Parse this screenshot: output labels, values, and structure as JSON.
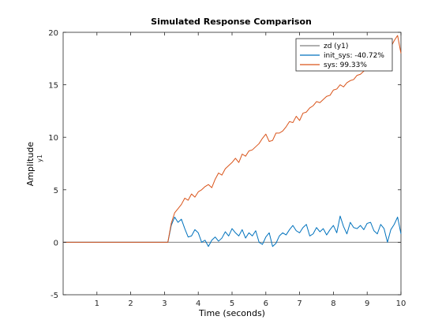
{
  "chart_data": {
    "type": "line",
    "title": "Simulated Response Comparison",
    "xlabel": "Time (seconds)",
    "ylabel": "Amplitude",
    "ylabel_sub": "y1",
    "xlim": [
      0,
      10
    ],
    "ylim": [
      -5,
      20
    ],
    "xticks": [
      1,
      2,
      3,
      4,
      5,
      6,
      7,
      8,
      9,
      10
    ],
    "yticks": [
      -5,
      0,
      5,
      10,
      15,
      20
    ],
    "grid": false,
    "legend_position": "top-right",
    "series": [
      {
        "name": "zd (y1)",
        "color": "#7f7f7f",
        "x": [
          0,
          10
        ],
        "y": [
          0,
          0
        ]
      },
      {
        "name": "init_sys: -40.72%",
        "color": "#0072bd",
        "x": [
          0,
          3.1,
          3.2,
          3.3,
          3.4,
          3.5,
          3.6,
          3.7,
          3.8,
          3.9,
          4.0,
          4.1,
          4.2,
          4.3,
          4.4,
          4.5,
          4.6,
          4.7,
          4.8,
          4.9,
          5.0,
          5.1,
          5.2,
          5.3,
          5.4,
          5.5,
          5.6,
          5.7,
          5.8,
          5.9,
          6.0,
          6.1,
          6.2,
          6.3,
          6.4,
          6.5,
          6.6,
          6.7,
          6.8,
          6.9,
          7.0,
          7.1,
          7.2,
          7.3,
          7.4,
          7.5,
          7.6,
          7.7,
          7.8,
          7.9,
          8.0,
          8.1,
          8.2,
          8.3,
          8.4,
          8.5,
          8.6,
          8.7,
          8.8,
          8.9,
          9.0,
          9.1,
          9.2,
          9.3,
          9.4,
          9.5,
          9.6,
          9.7,
          9.8,
          9.9,
          10.0
        ],
        "y": [
          0,
          0,
          1.6,
          2.4,
          1.9,
          2.2,
          1.3,
          0.5,
          0.6,
          1.2,
          0.9,
          0.0,
          0.2,
          -0.4,
          0.2,
          0.5,
          0.1,
          0.4,
          1.0,
          0.6,
          1.3,
          0.9,
          0.6,
          1.2,
          0.4,
          0.9,
          0.6,
          1.1,
          0.0,
          -0.2,
          0.5,
          0.9,
          -0.4,
          -0.1,
          0.6,
          0.9,
          0.7,
          1.2,
          1.6,
          1.1,
          0.9,
          1.4,
          1.7,
          0.6,
          0.8,
          1.4,
          1.0,
          1.3,
          0.7,
          1.2,
          1.6,
          0.9,
          2.5,
          1.5,
          0.8,
          1.9,
          1.4,
          1.3,
          1.6,
          1.2,
          1.8,
          1.9,
          1.1,
          0.8,
          1.7,
          1.3,
          0.0,
          1.2,
          1.7,
          2.4,
          0.8
        ]
      },
      {
        "name": "sys: 99.33%",
        "color": "#d95319",
        "x": [
          0,
          3.1,
          3.2,
          3.3,
          3.4,
          3.5,
          3.6,
          3.7,
          3.8,
          3.9,
          4.0,
          4.1,
          4.2,
          4.3,
          4.4,
          4.5,
          4.6,
          4.7,
          4.8,
          4.9,
          5.0,
          5.1,
          5.2,
          5.3,
          5.4,
          5.5,
          5.6,
          5.7,
          5.8,
          5.9,
          6.0,
          6.1,
          6.2,
          6.3,
          6.4,
          6.5,
          6.6,
          6.7,
          6.8,
          6.9,
          7.0,
          7.1,
          7.2,
          7.3,
          7.4,
          7.5,
          7.6,
          7.7,
          7.8,
          7.9,
          8.0,
          8.1,
          8.2,
          8.3,
          8.4,
          8.5,
          8.6,
          8.7,
          8.8,
          8.9,
          9.0,
          9.1,
          9.2,
          9.3,
          9.4,
          9.5,
          9.6,
          9.7,
          9.8,
          9.9,
          10.0
        ],
        "y": [
          0,
          0,
          1.8,
          2.8,
          3.2,
          3.6,
          4.2,
          4.0,
          4.6,
          4.3,
          4.8,
          5.0,
          5.3,
          5.5,
          5.2,
          6.0,
          6.6,
          6.4,
          7.0,
          7.3,
          7.6,
          8.0,
          7.6,
          8.4,
          8.2,
          8.7,
          8.8,
          9.1,
          9.4,
          9.9,
          10.3,
          9.6,
          9.7,
          10.4,
          10.4,
          10.6,
          11.0,
          11.5,
          11.4,
          12.0,
          11.6,
          12.3,
          12.4,
          12.8,
          13.0,
          13.4,
          13.3,
          13.6,
          13.9,
          14.0,
          14.5,
          14.6,
          15.0,
          14.8,
          15.2,
          15.4,
          15.5,
          15.9,
          16.0,
          16.3,
          16.6,
          16.9,
          17.2,
          17.4,
          17.3,
          17.9,
          18.2,
          18.6,
          19.2,
          19.7,
          18.0
        ]
      }
    ]
  }
}
